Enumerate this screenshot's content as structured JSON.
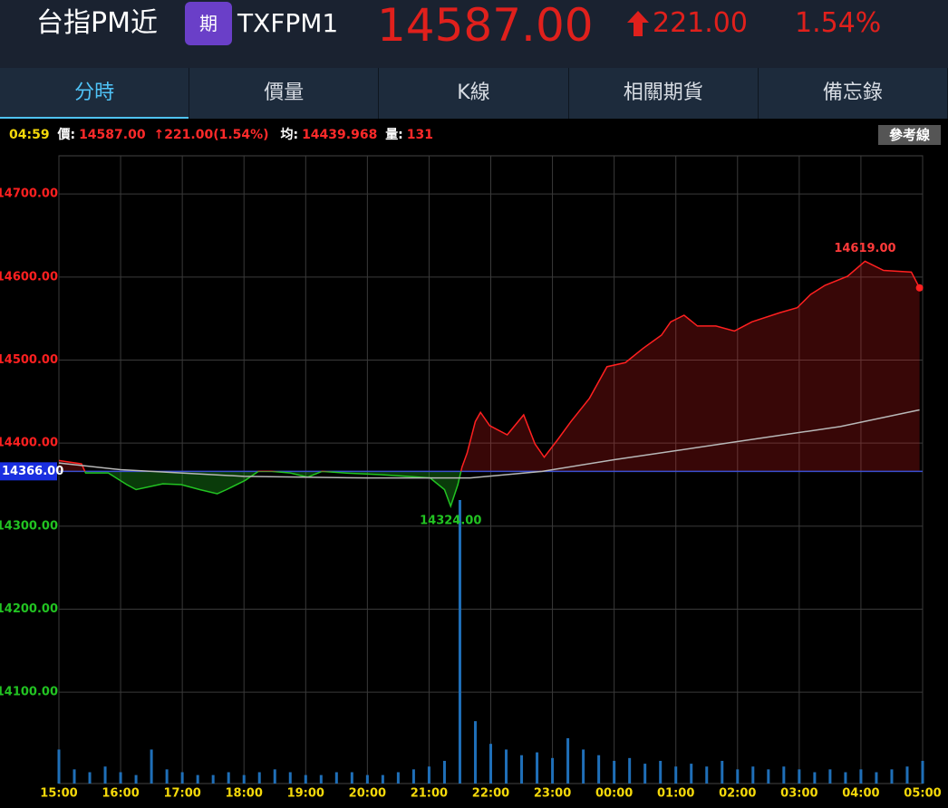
{
  "header": {
    "name": "台指PM近",
    "badge": "期",
    "code": "TXFPM1",
    "price": "14587.00",
    "change": "221.00",
    "percent": "1.54%"
  },
  "tabs": [
    "分時",
    "價量",
    "K線",
    "相關期貨",
    "備忘錄"
  ],
  "info": {
    "time": "04:59",
    "price_label": "價:",
    "price": "14587.00",
    "change": "221.00(1.54%)",
    "avg_label": "均:",
    "avg": "14439.968",
    "vol_label": "量:",
    "vol": "131",
    "ref_button": "參考線"
  },
  "chart_data": {
    "type": "line",
    "xlim": [
      0,
      840
    ],
    "xticks": [
      {
        "value": 0,
        "label": "15:00"
      },
      {
        "value": 60,
        "label": "16:00"
      },
      {
        "value": 120,
        "label": "17:00"
      },
      {
        "value": 180,
        "label": "18:00"
      },
      {
        "value": 240,
        "label": "19:00"
      },
      {
        "value": 300,
        "label": "20:00"
      },
      {
        "value": 360,
        "label": "21:00"
      },
      {
        "value": 420,
        "label": "22:00"
      },
      {
        "value": 480,
        "label": "23:00"
      },
      {
        "value": 540,
        "label": "00:00"
      },
      {
        "value": 600,
        "label": "01:00"
      },
      {
        "value": 660,
        "label": "02:00"
      },
      {
        "value": 720,
        "label": "03:00"
      },
      {
        "value": 780,
        "label": "04:00"
      },
      {
        "value": 840,
        "label": "05:00"
      }
    ],
    "ylim": [
      13990,
      14746
    ],
    "yticks": [
      {
        "value": 14700,
        "label": "14700.00"
      },
      {
        "value": 14600,
        "label": "14600.00"
      },
      {
        "value": 14500,
        "label": "14500.00"
      },
      {
        "value": 14400,
        "label": "14400.00"
      },
      {
        "value": 14300,
        "label": "14300.00"
      },
      {
        "value": 14200,
        "label": "14200.00"
      },
      {
        "value": 14100,
        "label": "14100.00"
      }
    ],
    "reference": {
      "value": 14366,
      "label": "14366.00"
    },
    "grid": true,
    "series": [
      {
        "name": "價",
        "up_color": "#ff2020",
        "down_color": "#22c322",
        "x": [
          0,
          22,
          26,
          48,
          66,
          75,
          101,
          119,
          137,
          154,
          163,
          181,
          194,
          207,
          225,
          242,
          256,
          278,
          313,
          339,
          361,
          375,
          381,
          388,
          392,
          397,
          405,
          410,
          419,
          436,
          452,
          463,
          472,
          485,
          498,
          516,
          533,
          551,
          568,
          586,
          595,
          608,
          621,
          639,
          657,
          674,
          701,
          718,
          731,
          745,
          767,
          784,
          802,
          829,
          837
        ],
        "values": [
          14379,
          14375,
          14364,
          14364,
          14350,
          14344,
          14351,
          14350,
          14344,
          14339,
          14344,
          14355,
          14366,
          14366,
          14364,
          14359,
          14366,
          14364,
          14362,
          14360,
          14358,
          14344,
          14324,
          14350,
          14371,
          14388,
          14426,
          14437,
          14421,
          14410,
          14434,
          14399,
          14383,
          14404,
          14426,
          14454,
          14492,
          14497,
          14514,
          14530,
          14546,
          14554,
          14541,
          14541,
          14535,
          14546,
          14557,
          14563,
          14579,
          14590,
          14601,
          14619,
          14608,
          14606,
          14587
        ]
      },
      {
        "name": "均",
        "color": "#b8b8b8",
        "x": [
          0,
          60,
          180,
          300,
          400,
          470,
          540,
          650,
          760,
          837
        ],
        "values": [
          14376,
          14368,
          14360,
          14358,
          14358,
          14366,
          14380,
          14400,
          14420,
          14439.968
        ]
      }
    ],
    "annotations": [
      {
        "x": 784,
        "value": 14619,
        "label": "14619.00",
        "color": "#ff3a3a"
      },
      {
        "x": 381,
        "value": 14324,
        "label": "14324.00",
        "color": "#22c322"
      }
    ],
    "volume": {
      "color": "#1f6fb8",
      "x": [
        0,
        15,
        30,
        45,
        60,
        75,
        90,
        105,
        120,
        135,
        150,
        165,
        180,
        195,
        210,
        225,
        240,
        255,
        270,
        285,
        300,
        315,
        330,
        345,
        360,
        375,
        390,
        405,
        420,
        435,
        450,
        465,
        480,
        495,
        510,
        525,
        540,
        555,
        570,
        585,
        600,
        615,
        630,
        645,
        660,
        675,
        690,
        705,
        720,
        735,
        750,
        765,
        780,
        795,
        810,
        825,
        840
      ],
      "values": [
        12,
        5,
        4,
        6,
        4,
        3,
        12,
        5,
        4,
        3,
        3,
        4,
        3,
        4,
        5,
        4,
        3,
        3,
        4,
        4,
        3,
        3,
        4,
        5,
        6,
        8,
        100,
        22,
        14,
        12,
        10,
        11,
        9,
        16,
        12,
        10,
        8,
        9,
        7,
        8,
        6,
        7,
        6,
        8,
        5,
        6,
        5,
        6,
        5,
        4,
        5,
        4,
        5,
        4,
        5,
        6,
        8
      ]
    }
  }
}
